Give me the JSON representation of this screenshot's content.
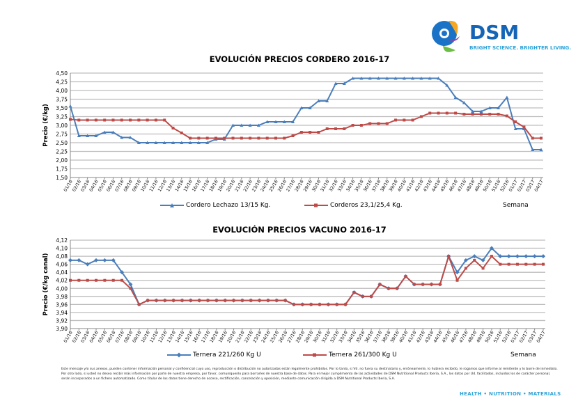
{
  "logo": {
    "name": "DSM",
    "tagline": "BRIGHT SCIENCE. BRIGHTER LIVING."
  },
  "footer": {
    "disclaimer": "Este mensaje y/o sus anexos, pueden contener información personal y confidencial cuyo uso, reproducción o distribución no autorizadas están legalmente prohibidos. Por lo tanto, si Vd. no fuera su destinatario y, erróneamente, lo hubiera recibido, le rogamos que informe al remitente y lo borre de inmediato. Por otro lado, si usted no desea recibir más información por parte de nuestra empresa, por favor, comuníquenlo para borrarles de nuestra base de datos. Para el mejor cumplimiento de las actividades de DSM Nutritional Products Iberia, S.A., los datos por Ud. facilitados, incluidos los de carácter personal, serán incorporados a un fichero automatizado. Como titular de los datos tiene derecho de acceso, rectificación, cancelación y oposición, mediante comunicación dirigida a DSM Nutritional Products Iberia, S.A.",
    "slogan": "HEALTH • NUTRITION • MATERIALS"
  },
  "chart_data": [
    {
      "type": "line",
      "title": "EVOLUCIÓN PRECIOS CORDERO 2016-17",
      "ylabel": "Precio (€/kg)",
      "xlabel": "Semana",
      "ylim": [
        1.5,
        4.5
      ],
      "ystep": 0.25,
      "decimals": 2,
      "categories": [
        "01/16",
        "02/16",
        "03/16",
        "04/16",
        "05/16",
        "06/16",
        "07/16",
        "08/16",
        "09/16",
        "10/16",
        "11/16",
        "12/16",
        "13/16",
        "14/16",
        "15/16",
        "16/16",
        "17/16",
        "18/16",
        "19/16",
        "20/16",
        "21/16",
        "22/16",
        "23/16",
        "24/16",
        "25/16",
        "26/16",
        "27/16",
        "28/16",
        "29/16",
        "30/16",
        "31/16",
        "32/16",
        "33/16",
        "34/16",
        "35/16",
        "36/16",
        "37/16",
        "38/16",
        "39/16",
        "40/16",
        "41/16",
        "42/16",
        "43/16",
        "44/16",
        "45/16",
        "46/16",
        "47/16",
        "48/16",
        "49/16",
        "50/16",
        "51/16",
        "52/16",
        "01/17",
        "02/17",
        "03/17",
        "04/17"
      ],
      "series": [
        {
          "name": "Cordero Lechazo 13/15 Kg.",
          "color": "#4a7ebb",
          "marker": "triangle",
          "values": [
            3.55,
            2.7,
            2.7,
            2.7,
            2.8,
            2.8,
            2.65,
            2.65,
            2.5,
            2.5,
            2.5,
            2.5,
            2.5,
            2.5,
            2.5,
            2.5,
            2.5,
            2.6,
            2.6,
            3.0,
            3.0,
            3.0,
            3.0,
            3.1,
            3.1,
            3.1,
            3.1,
            3.5,
            3.5,
            3.7,
            3.7,
            4.2,
            4.2,
            4.35,
            4.35,
            4.35,
            4.35,
            4.35,
            4.35,
            4.35,
            4.35,
            4.35,
            4.35,
            4.35,
            4.15,
            3.8,
            3.65,
            3.4,
            3.4,
            3.5,
            3.5,
            3.8,
            2.9,
            2.9,
            2.3,
            2.3
          ]
        },
        {
          "name": "Corderos 23,1/25,4 Kg.",
          "color": "#be4b48",
          "marker": "square",
          "values": [
            3.17,
            3.15,
            3.15,
            3.15,
            3.15,
            3.15,
            3.15,
            3.15,
            3.15,
            3.15,
            3.15,
            3.15,
            2.92,
            2.78,
            2.63,
            2.63,
            2.63,
            2.63,
            2.63,
            2.63,
            2.63,
            2.63,
            2.63,
            2.63,
            2.63,
            2.63,
            2.7,
            2.8,
            2.8,
            2.8,
            2.9,
            2.9,
            2.9,
            3.0,
            3.0,
            3.05,
            3.05,
            3.05,
            3.15,
            3.15,
            3.15,
            3.25,
            3.35,
            3.35,
            3.35,
            3.35,
            3.32,
            3.32,
            3.32,
            3.32,
            3.32,
            3.27,
            3.1,
            2.95,
            2.63,
            2.63
          ]
        }
      ]
    },
    {
      "type": "line",
      "title": "EVOLUCIÓN PRECIOS VACUNO 2016-17",
      "ylabel": "Precio (€/kg canal)",
      "xlabel": "Semana",
      "ylim": [
        3.9,
        4.12
      ],
      "ystep": 0.02,
      "decimals": 2,
      "categories": [
        "01/16",
        "02/16",
        "03/16",
        "04/16",
        "05/16",
        "06/16",
        "07/16",
        "08/16",
        "09/16",
        "10/16",
        "11/16",
        "12/16",
        "13/16",
        "14/16",
        "15/16",
        "16/16",
        "17/16",
        "18/16",
        "19/16",
        "20/16",
        "21/16",
        "22/16",
        "23/16",
        "24/16",
        "25/16",
        "26/16",
        "27/16",
        "28/16",
        "29/16",
        "30/16",
        "31/16",
        "32/16",
        "33/16",
        "34/16",
        "35/16",
        "36/16",
        "37/16",
        "38/16",
        "39/16",
        "40/16",
        "41/16",
        "42/16",
        "43/16",
        "44/16",
        "45/16",
        "46/16",
        "47/16",
        "48/16",
        "49/16",
        "50/16",
        "51/16",
        "52/16",
        "01/17",
        "02/17",
        "03/17",
        "04/17"
      ],
      "series": [
        {
          "name": "Ternera 221/260 Kg U",
          "color": "#4a7ebb",
          "marker": "diamond",
          "values": [
            4.07,
            4.07,
            4.06,
            4.07,
            4.07,
            4.07,
            4.04,
            4.01,
            3.96,
            3.97,
            3.97,
            3.97,
            3.97,
            3.97,
            3.97,
            3.97,
            3.97,
            3.97,
            3.97,
            3.97,
            3.97,
            3.97,
            3.97,
            3.97,
            3.97,
            3.97,
            3.96,
            3.96,
            3.96,
            3.96,
            3.96,
            3.96,
            3.96,
            3.99,
            3.98,
            3.98,
            4.01,
            4.0,
            4.0,
            4.03,
            4.01,
            4.01,
            4.01,
            4.01,
            4.08,
            4.04,
            4.07,
            4.08,
            4.07,
            4.1,
            4.08,
            4.08,
            4.08,
            4.08,
            4.08,
            4.08
          ]
        },
        {
          "name": "Ternera 261/300 Kg U",
          "color": "#be4b48",
          "marker": "square",
          "values": [
            4.02,
            4.02,
            4.02,
            4.02,
            4.02,
            4.02,
            4.02,
            4.0,
            3.96,
            3.97,
            3.97,
            3.97,
            3.97,
            3.97,
            3.97,
            3.97,
            3.97,
            3.97,
            3.97,
            3.97,
            3.97,
            3.97,
            3.97,
            3.97,
            3.97,
            3.97,
            3.96,
            3.96,
            3.96,
            3.96,
            3.96,
            3.96,
            3.96,
            3.99,
            3.98,
            3.98,
            4.01,
            4.0,
            4.0,
            4.03,
            4.01,
            4.01,
            4.01,
            4.01,
            4.08,
            4.02,
            4.05,
            4.07,
            4.05,
            4.08,
            4.06,
            4.06,
            4.06,
            4.06,
            4.06,
            4.06
          ]
        }
      ]
    }
  ]
}
